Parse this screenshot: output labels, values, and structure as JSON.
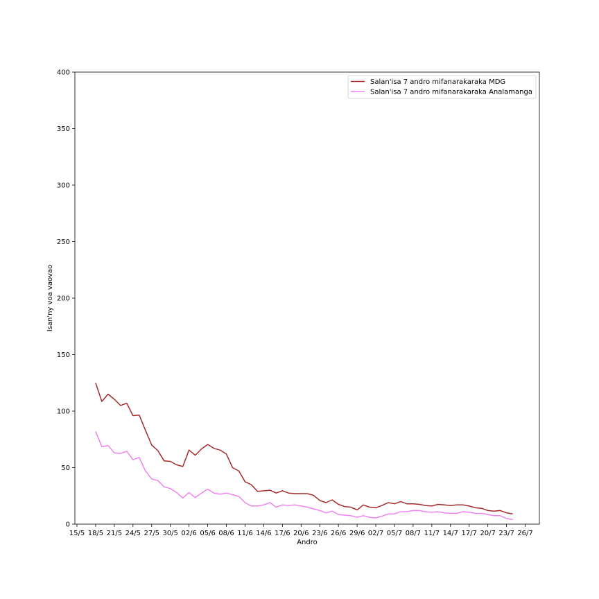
{
  "chart_data": {
    "type": "line",
    "title": "",
    "xlabel": "Andro",
    "ylabel": "Isan'ny voa vaovao",
    "ylim": [
      0,
      400
    ],
    "yticks": [
      0,
      50,
      100,
      150,
      200,
      250,
      300,
      350,
      400
    ],
    "xticks": [
      "15/5",
      "18/5",
      "21/5",
      "24/5",
      "27/5",
      "30/5",
      "02/6",
      "05/6",
      "08/6",
      "11/6",
      "14/6",
      "17/6",
      "20/6",
      "23/6",
      "26/6",
      "29/6",
      "02/7",
      "05/7",
      "08/7",
      "11/7",
      "14/7",
      "17/7",
      "20/7",
      "23/7",
      "26/7"
    ],
    "x_start": "2020-05-18",
    "grid": false,
    "legend_position": "upper-right",
    "series": [
      {
        "name": "Salan'isa 7 andro mifanarakaraka MDG",
        "color": "#a52a2a",
        "values": [
          125,
          108.5,
          115,
          110.5,
          105,
          107,
          96,
          96.5,
          83,
          70,
          65,
          56,
          55.5,
          52.5,
          51,
          65.5,
          61,
          66.5,
          70.5,
          67,
          65.5,
          62,
          50,
          47,
          37.5,
          35,
          29,
          29.5,
          30,
          27.5,
          29.5,
          27.5,
          27,
          27,
          27,
          25.5,
          21,
          19,
          21.5,
          17.5,
          15.5,
          15,
          12.5,
          17,
          15,
          14.5,
          16.5,
          19,
          18,
          20,
          18,
          18,
          17.5,
          16.5,
          16,
          17.5,
          17,
          16.5,
          17,
          17,
          16,
          14.5,
          14,
          12,
          11.5,
          12,
          10,
          9
        ]
      },
      {
        "name": "Salan'isa 7 andro mifanarakaraka Analamanga",
        "color": "#ee82ee",
        "values": [
          82,
          68.5,
          69.5,
          63,
          62.5,
          64.5,
          57,
          59,
          47,
          40,
          38.5,
          33,
          31.5,
          28,
          23,
          28,
          23.5,
          27.5,
          31,
          27.5,
          26.5,
          27.5,
          26,
          24.5,
          19,
          16,
          16,
          17,
          19,
          15,
          17,
          16.5,
          17,
          16,
          15,
          13.5,
          12,
          10,
          11.5,
          8.5,
          8,
          7.5,
          6,
          7.5,
          6,
          5.5,
          7,
          9,
          9,
          11,
          11,
          12,
          12,
          11,
          10.5,
          11,
          10,
          9.5,
          9.5,
          11,
          10.5,
          9.5,
          9.5,
          8.5,
          7.5,
          7.5,
          5,
          4
        ]
      }
    ]
  }
}
